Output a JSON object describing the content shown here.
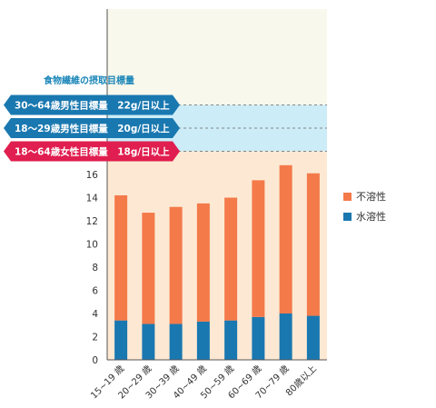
{
  "chart_data": {
    "type": "bar",
    "stacked": true,
    "categories": [
      "15~19 歳",
      "20~29 歳",
      "30~39 歳",
      "40~49 歳",
      "50~59 歳",
      "60~69 歳",
      "70~79 歳",
      "80歳以上"
    ],
    "series": [
      {
        "name": "水溶性",
        "color": "#1a78b0",
        "values": [
          3.4,
          3.1,
          3.1,
          3.3,
          3.4,
          3.7,
          4.0,
          3.8
        ]
      },
      {
        "name": "不溶性",
        "color": "#f47a4a",
        "values": [
          10.8,
          9.6,
          10.1,
          10.2,
          10.6,
          11.8,
          12.8,
          12.3
        ]
      }
    ],
    "yticks": [
      0,
      2,
      4,
      6,
      8,
      10,
      12,
      14,
      16
    ],
    "ylim": [
      0,
      30
    ],
    "grid": false,
    "legend_position": "right",
    "targets_title": "食物繊維の摂取目標量",
    "targets": [
      {
        "label": "30～64歳男性目標量　22g/日以上",
        "value": 22,
        "color": "#1a78b0",
        "band": "#ccecf7"
      },
      {
        "label": "18～29歳男性目標量　20g/日以上",
        "value": 20,
        "color": "#1a78b0",
        "band": "#ccecf7"
      },
      {
        "label": "18～64歳女性目標量　18g/日以上",
        "value": 18,
        "color": "#e01e4f",
        "band": "#fde9d3"
      }
    ],
    "colors": {
      "upper_band": "#f8f8ec",
      "axis": "#555555"
    }
  }
}
